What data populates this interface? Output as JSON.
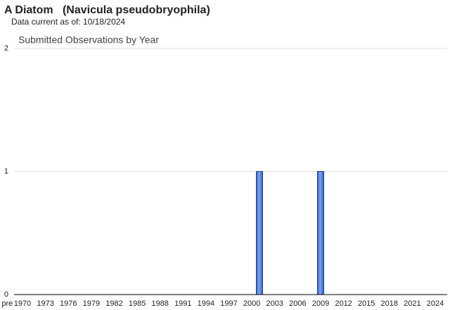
{
  "page_title": "A Diatom   (Navicula pseudobryophila)",
  "subtitle": "Data current as of: 10/18/2024",
  "chart_data": {
    "type": "bar",
    "title": "Submitted Observations by Year",
    "categories": [
      "pre",
      null,
      "1970",
      null,
      null,
      "1973",
      null,
      null,
      "1976",
      null,
      null,
      "1979",
      null,
      null,
      "1982",
      null,
      null,
      "1985",
      null,
      null,
      "1988",
      null,
      null,
      "1991",
      null,
      null,
      "1994",
      null,
      null,
      "1997",
      null,
      null,
      "2000",
      null,
      null,
      "2003",
      null,
      null,
      "2006",
      null,
      null,
      "2009",
      null,
      null,
      "2012",
      null,
      null,
      "2015",
      null,
      null,
      "2018",
      null,
      null,
      "2021",
      null,
      null,
      "2024"
    ],
    "values": [
      0,
      0,
      0,
      0,
      0,
      0,
      0,
      0,
      0,
      0,
      0,
      0,
      0,
      0,
      0,
      0,
      0,
      0,
      0,
      0,
      0,
      0,
      0,
      0,
      0,
      0,
      0,
      0,
      0,
      0,
      0,
      0,
      0,
      1,
      0,
      0,
      0,
      0,
      0,
      0,
      0,
      1,
      0,
      0,
      0,
      0,
      0,
      0,
      0,
      0,
      0,
      0,
      0,
      0,
      0,
      0,
      0
    ],
    "color": "#3c6fd8",
    "ylim": [
      0,
      2
    ],
    "yticks": [
      0,
      1,
      2
    ],
    "grid": true
  }
}
